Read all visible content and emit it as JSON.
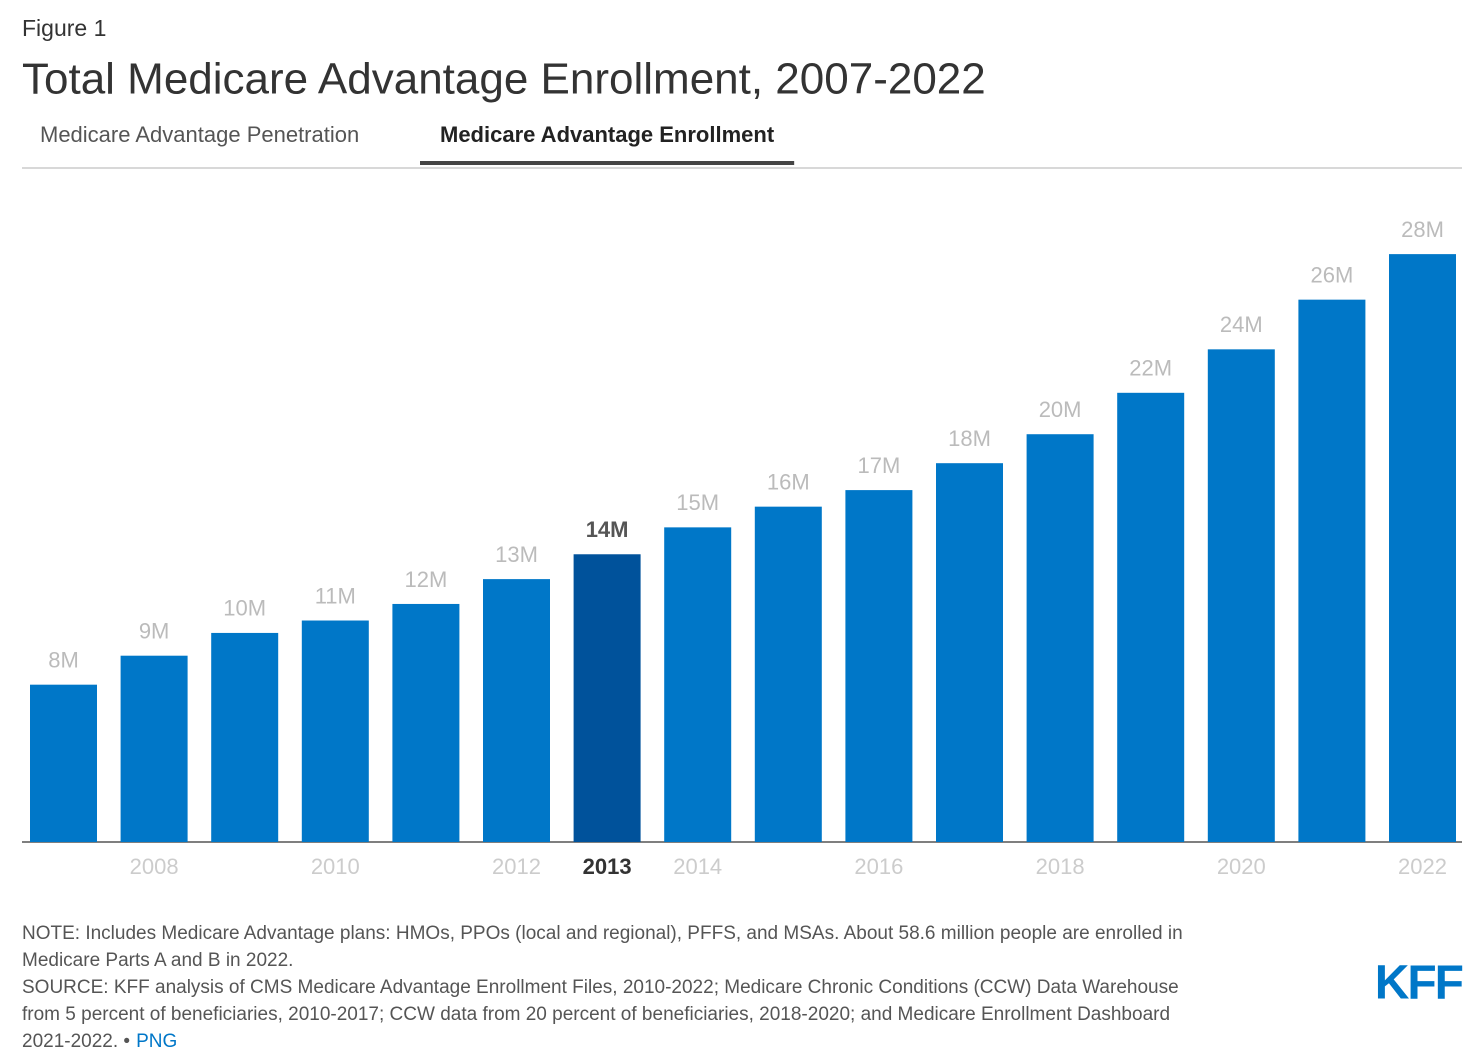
{
  "figure_label": "Figure 1",
  "tabs": {
    "items": [
      "Medicare Advantage Penetration",
      "Medicare Advantage Enrollment"
    ],
    "active": 1
  },
  "chart_data": {
    "type": "bar",
    "title": "Total Medicare Advantage Enrollment, 2007-2022",
    "categories": [
      null,
      "2008",
      null,
      "2010",
      null,
      "2012",
      "2013",
      "2014",
      null,
      "2016",
      null,
      "2018",
      null,
      "2020",
      null,
      "2022"
    ],
    "values": [
      7.6,
      9.0,
      10.1,
      10.7,
      11.5,
      12.7,
      13.9,
      15.2,
      16.2,
      17.0,
      18.3,
      19.7,
      21.7,
      23.8,
      26.2,
      28.4
    ],
    "value_labels": [
      "8M",
      "9M",
      "10M",
      "11M",
      "12M",
      "13M",
      "14M",
      "15M",
      "16M",
      "17M",
      "18M",
      "20M",
      "22M",
      "24M",
      "26M",
      "28M"
    ],
    "color": "#0077c8",
    "highlight": 6,
    "highlight_color": "#00529b"
  },
  "footer": {
    "lines": [
      "NOTE: Includes Medicare Advantage plans: HMOs, PPOs (local and regional), PFFS, and MSAs. About 58.6 million people are enrolled in",
      "Medicare Parts A and B in 2022.",
      "SOURCE: KFF analysis of CMS Medicare Advantage Enrollment Files, 2010-2022; Medicare Chronic Conditions (CCW) Data Warehouse",
      "from 5 percent of beneficiaries, 2010-2017; CCW data from 20 percent of beneficiaries, 2018-2020; and Medicare Enrollment Dashboard",
      "2021-2022. •"
    ],
    "link": "PNG",
    "logo": "KFF"
  }
}
